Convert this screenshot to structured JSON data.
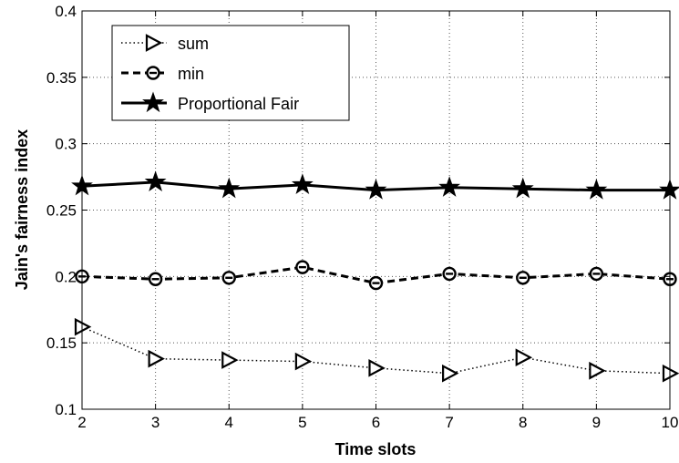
{
  "chart_data": {
    "type": "line",
    "xlabel": "Time slots",
    "ylabel": "Jain's fairness index",
    "xlim": [
      2,
      10
    ],
    "ylim": [
      0.1,
      0.4
    ],
    "x": [
      2,
      3,
      4,
      5,
      6,
      7,
      8,
      9,
      10
    ],
    "xticks": [
      "2",
      "3",
      "4",
      "5",
      "6",
      "7",
      "8",
      "9",
      "10"
    ],
    "yticks": [
      "0.1",
      "0.15",
      "0.2",
      "0.25",
      "0.3",
      "0.35",
      "0.4"
    ],
    "grid": true,
    "legend_position": "top-left",
    "series": [
      {
        "name": "sum",
        "marker": "triangle-right",
        "line_style": "dotted",
        "values": [
          0.162,
          0.138,
          0.137,
          0.136,
          0.131,
          0.127,
          0.139,
          0.129,
          0.127
        ]
      },
      {
        "name": "min",
        "marker": "circle",
        "line_style": "dashed",
        "values": [
          0.2,
          0.198,
          0.199,
          0.207,
          0.195,
          0.202,
          0.199,
          0.202,
          0.198
        ]
      },
      {
        "name": "Proportional Fair",
        "marker": "star",
        "line_style": "solid",
        "values": [
          0.268,
          0.271,
          0.266,
          0.269,
          0.265,
          0.267,
          0.266,
          0.265,
          0.265
        ]
      }
    ]
  }
}
